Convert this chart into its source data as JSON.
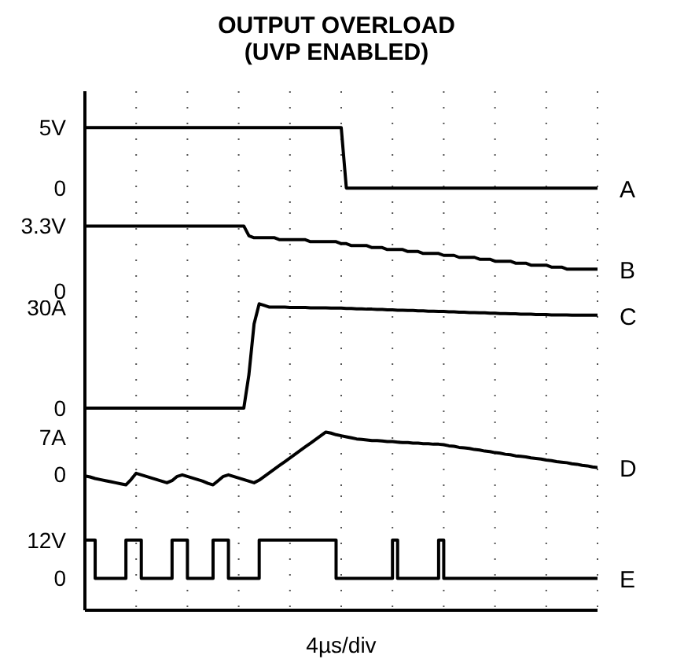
{
  "chart_data": [
    {
      "type": "line",
      "title": "OUTPUT OVERLOAD",
      "subtitle": "(UVP ENABLED)",
      "categories": [
        null,
        null,
        null,
        null,
        null,
        null,
        null,
        null,
        null,
        null,
        null,
        null,
        null,
        null,
        null,
        null,
        null,
        null,
        null,
        null,
        null,
        null,
        null,
        null,
        null,
        null,
        null,
        null,
        null,
        null,
        null,
        null,
        null,
        null,
        null,
        null,
        null,
        null,
        null,
        null,
        null,
        null,
        null,
        null,
        null,
        null,
        null,
        null,
        null,
        null,
        null,
        null,
        null,
        null,
        null,
        null,
        null,
        null,
        null,
        null,
        null,
        null,
        null,
        null,
        null,
        null,
        null,
        null,
        null,
        null,
        null,
        null,
        null,
        null,
        null,
        null,
        null,
        null,
        null,
        null,
        null,
        null,
        null,
        null,
        null,
        null,
        null,
        null,
        null,
        null,
        null,
        null,
        null,
        null,
        null,
        null,
        null,
        null,
        null,
        null,
        null
      ],
      "ylim": [
        -2,
        8
      ],
      "yticks": [
        {
          "value": 0,
          "label": "0"
        },
        {
          "value": 5,
          "label": "5V"
        }
      ],
      "grid": "x",
      "tick_labels": "y",
      "series": [
        {
          "name": "A",
          "color": "#000000",
          "values": [
            5,
            5,
            5,
            5,
            5,
            5,
            5,
            5,
            5,
            5,
            5,
            5,
            5,
            5,
            5,
            5,
            5,
            5,
            5,
            5,
            5,
            5,
            5,
            5,
            5,
            5,
            5,
            5,
            5,
            5,
            5,
            5,
            5,
            5,
            5,
            5,
            5,
            5,
            5,
            5,
            5,
            5,
            5,
            5,
            5,
            5,
            5,
            5,
            5,
            5,
            5,
            0,
            0,
            0,
            0,
            0,
            0,
            0,
            0,
            0,
            0,
            0,
            0,
            0,
            0,
            0,
            0,
            0,
            0,
            0,
            0,
            0,
            0,
            0,
            0,
            0,
            0,
            0,
            0,
            0,
            0,
            0,
            0,
            0,
            0,
            0,
            0,
            0,
            0,
            0,
            0,
            0,
            0,
            0,
            0,
            0,
            0,
            0,
            0,
            0,
            0
          ]
        }
      ]
    },
    {
      "type": "line",
      "categories": [
        null,
        null,
        null,
        null,
        null,
        null,
        null,
        null,
        null,
        null,
        null,
        null,
        null,
        null,
        null,
        null,
        null,
        null,
        null,
        null,
        null,
        null,
        null,
        null,
        null,
        null,
        null,
        null,
        null,
        null,
        null,
        null,
        null,
        null,
        null,
        null,
        null,
        null,
        null,
        null,
        null,
        null,
        null,
        null,
        null,
        null,
        null,
        null,
        null,
        null,
        null,
        null,
        null,
        null,
        null,
        null,
        null,
        null,
        null,
        null,
        null,
        null,
        null,
        null,
        null,
        null,
        null,
        null,
        null,
        null,
        null,
        null,
        null,
        null,
        null,
        null,
        null,
        null,
        null,
        null,
        null,
        null,
        null,
        null,
        null,
        null,
        null,
        null,
        null,
        null,
        null,
        null,
        null,
        null,
        null,
        null,
        null,
        null,
        null,
        null,
        null
      ],
      "ylim": [
        -0.5,
        4
      ],
      "yticks": [
        {
          "value": 0,
          "label": "0"
        },
        {
          "value": 3.3,
          "label": "3.3V"
        }
      ],
      "grid": "x",
      "tick_labels": "y",
      "series": [
        {
          "name": "B",
          "color": "#000000",
          "values": [
            3.3,
            3.3,
            3.3,
            3.3,
            3.3,
            3.3,
            3.3,
            3.3,
            3.3,
            3.3,
            3.3,
            3.3,
            3.3,
            3.3,
            3.3,
            3.3,
            3.3,
            3.3,
            3.3,
            3.3,
            3.3,
            3.3,
            3.3,
            3.3,
            3.3,
            3.3,
            3.3,
            3.3,
            3.3,
            3.3,
            3.3,
            3.3,
            2.8,
            2.7,
            2.7,
            2.7,
            2.7,
            2.7,
            2.6,
            2.6,
            2.6,
            2.6,
            2.6,
            2.6,
            2.5,
            2.5,
            2.5,
            2.5,
            2.5,
            2.5,
            2.4,
            2.4,
            2.3,
            2.3,
            2.3,
            2.3,
            2.2,
            2.2,
            2.2,
            2.1,
            2.1,
            2.1,
            2.1,
            2.0,
            2.0,
            2.0,
            1.9,
            1.9,
            1.9,
            1.9,
            1.8,
            1.8,
            1.8,
            1.7,
            1.7,
            1.7,
            1.7,
            1.6,
            1.6,
            1.6,
            1.5,
            1.5,
            1.5,
            1.5,
            1.4,
            1.4,
            1.4,
            1.3,
            1.3,
            1.3,
            1.3,
            1.2,
            1.2,
            1.2,
            1.1,
            1.1,
            1.1,
            1.1,
            1.1,
            1.1,
            1.1
          ]
        }
      ]
    },
    {
      "type": "line",
      "categories": [
        null,
        null,
        null,
        null,
        null,
        null,
        null,
        null,
        null,
        null,
        null,
        null,
        null,
        null,
        null,
        null,
        null,
        null,
        null,
        null,
        null,
        null,
        null,
        null,
        null,
        null,
        null,
        null,
        null,
        null,
        null,
        null,
        null,
        null,
        null,
        null,
        null,
        null,
        null,
        null,
        null,
        null,
        null,
        null,
        null,
        null,
        null,
        null,
        null,
        null,
        null,
        null,
        null,
        null,
        null,
        null,
        null,
        null,
        null,
        null,
        null,
        null,
        null,
        null,
        null,
        null,
        null,
        null,
        null,
        null,
        null,
        null,
        null,
        null,
        null,
        null,
        null,
        null,
        null,
        null,
        null,
        null,
        null,
        null,
        null,
        null,
        null,
        null,
        null,
        null,
        null,
        null,
        null,
        null,
        null,
        null,
        null,
        null,
        null,
        null,
        null
      ],
      "ylim": [
        -4,
        32
      ],
      "yticks": [
        {
          "value": 0,
          "label": "0"
        },
        {
          "value": 30,
          "label": "30A"
        }
      ],
      "grid": "x",
      "tick_labels": "y",
      "series": [
        {
          "name": "C",
          "color": "#000000",
          "values": [
            0,
            0,
            0,
            0,
            0,
            0,
            0,
            0,
            0,
            0,
            0,
            0,
            0,
            0,
            0,
            0,
            0,
            0,
            0,
            0,
            0,
            0,
            0,
            0,
            0,
            0,
            0,
            0,
            0,
            0,
            0,
            0,
            10,
            25,
            31,
            30.5,
            30,
            30,
            30,
            30,
            29.9,
            29.9,
            29.9,
            29.9,
            29.8,
            29.8,
            29.8,
            29.8,
            29.7,
            29.7,
            29.7,
            29.6,
            29.6,
            29.5,
            29.5,
            29.4,
            29.4,
            29.3,
            29.3,
            29.2,
            29.2,
            29.1,
            29.1,
            29.0,
            29.0,
            28.9,
            28.9,
            28.8,
            28.8,
            28.7,
            28.7,
            28.6,
            28.6,
            28.5,
            28.5,
            28.4,
            28.4,
            28.3,
            28.3,
            28.2,
            28.2,
            28.1,
            28.1,
            28.0,
            28.0,
            27.9,
            27.9,
            27.9,
            27.8,
            27.8,
            27.8,
            27.7,
            27.7,
            27.7,
            27.7,
            27.6,
            27.6,
            27.6,
            27.6,
            27.6,
            27.6
          ]
        }
      ]
    },
    {
      "type": "line",
      "categories": [
        null,
        null,
        null,
        null,
        null,
        null,
        null,
        null,
        null,
        null,
        null,
        null,
        null,
        null,
        null,
        null,
        null,
        null,
        null,
        null,
        null,
        null,
        null,
        null,
        null,
        null,
        null,
        null,
        null,
        null,
        null,
        null,
        null,
        null,
        null,
        null,
        null,
        null,
        null,
        null,
        null,
        null,
        null,
        null,
        null,
        null,
        null,
        null,
        null,
        null,
        null,
        null,
        null,
        null,
        null,
        null,
        null,
        null,
        null,
        null,
        null,
        null,
        null,
        null,
        null,
        null,
        null,
        null,
        null,
        null,
        null,
        null,
        null,
        null,
        null,
        null,
        null,
        null,
        null,
        null,
        null,
        null,
        null,
        null,
        null,
        null,
        null,
        null,
        null,
        null,
        null,
        null,
        null,
        null,
        null,
        null,
        null,
        null,
        null,
        null,
        null
      ],
      "ylim": [
        -4,
        10
      ],
      "yticks": [
        {
          "value": 0,
          "label": "0"
        },
        {
          "value": 7,
          "label": "7A"
        }
      ],
      "grid": "x",
      "tick_labels": "y",
      "series": [
        {
          "name": "D",
          "color": "#000000",
          "values": [
            -0.3,
            -0.5,
            -0.8,
            -1.0,
            -1.2,
            -1.4,
            -1.6,
            -1.8,
            -2.0,
            -1.0,
            0.2,
            -0.1,
            -0.4,
            -0.7,
            -1.0,
            -1.3,
            -1.6,
            -1.2,
            -0.4,
            -0.1,
            -0.4,
            -0.7,
            -1.0,
            -1.3,
            -1.7,
            -2.0,
            -1.2,
            -0.4,
            -0.1,
            -0.4,
            -0.7,
            -1.0,
            -1.3,
            -1.6,
            -1.1,
            -0.4,
            0.3,
            1.0,
            1.7,
            2.4,
            3.1,
            3.8,
            4.5,
            5.2,
            5.9,
            6.6,
            7.3,
            8.0,
            7.8,
            7.5,
            7.3,
            7.1,
            6.9,
            6.7,
            6.6,
            6.5,
            6.4,
            6.4,
            6.3,
            6.2,
            6.2,
            6.1,
            6.0,
            6.0,
            5.9,
            5.9,
            5.8,
            5.8,
            5.7,
            5.7,
            5.6,
            5.4,
            5.3,
            5.1,
            5.0,
            4.9,
            4.7,
            4.6,
            4.4,
            4.3,
            4.1,
            4.0,
            3.8,
            3.7,
            3.5,
            3.4,
            3.3,
            3.1,
            3.0,
            2.9,
            2.7,
            2.6,
            2.4,
            2.3,
            2.2,
            2.0,
            1.9,
            1.7,
            1.6,
            1.4,
            1.3
          ]
        }
      ]
    },
    {
      "type": "step",
      "xlabel": "4µs/div",
      "categories": [
        null,
        null,
        null,
        null,
        null,
        null,
        null,
        null,
        null,
        null,
        null,
        null,
        null,
        null,
        null,
        null,
        null,
        null,
        null,
        null,
        null,
        null,
        null,
        null,
        null,
        null,
        null,
        null,
        null,
        null,
        null,
        null,
        null,
        null,
        null,
        null,
        null,
        null,
        null,
        null,
        null,
        null,
        null,
        null,
        null,
        null,
        null,
        null,
        null,
        null,
        null,
        null,
        null,
        null,
        null,
        null,
        null,
        null,
        null,
        null,
        null,
        null,
        null,
        null,
        null,
        null,
        null,
        null,
        null,
        null,
        null,
        null,
        null,
        null,
        null,
        null,
        null,
        null,
        null,
        null,
        null,
        null,
        null,
        null,
        null,
        null,
        null,
        null,
        null,
        null,
        null,
        null,
        null,
        null,
        null,
        null,
        null,
        null,
        null,
        null,
        null
      ],
      "ylim": [
        -10,
        26
      ],
      "yticks": [
        {
          "value": 0,
          "label": "0"
        },
        {
          "value": 12,
          "label": "12V"
        }
      ],
      "grid": "x",
      "tick_labels": "y",
      "series": [
        {
          "name": "E",
          "color": "#000000",
          "values": [
            12,
            12,
            0,
            0,
            0,
            0,
            0,
            0,
            12,
            12,
            12,
            0,
            0,
            0,
            0,
            0,
            0,
            12,
            12,
            12,
            0,
            0,
            0,
            0,
            0,
            12,
            12,
            12,
            0,
            0,
            0,
            0,
            0,
            0,
            12,
            12,
            12,
            12,
            12,
            12,
            12,
            12,
            12,
            12,
            12,
            12,
            12,
            12,
            12,
            0,
            0,
            0,
            0,
            0,
            0,
            0,
            0,
            0,
            0,
            0,
            12,
            0,
            0,
            0,
            0,
            0,
            0,
            0,
            0,
            12,
            0,
            0,
            0,
            0,
            0,
            0,
            0,
            0,
            0,
            0,
            0,
            0,
            0,
            0,
            0,
            0,
            0,
            0,
            0,
            0,
            0,
            0,
            0,
            0,
            0,
            0,
            0,
            0,
            0,
            0,
            0
          ]
        }
      ]
    }
  ]
}
